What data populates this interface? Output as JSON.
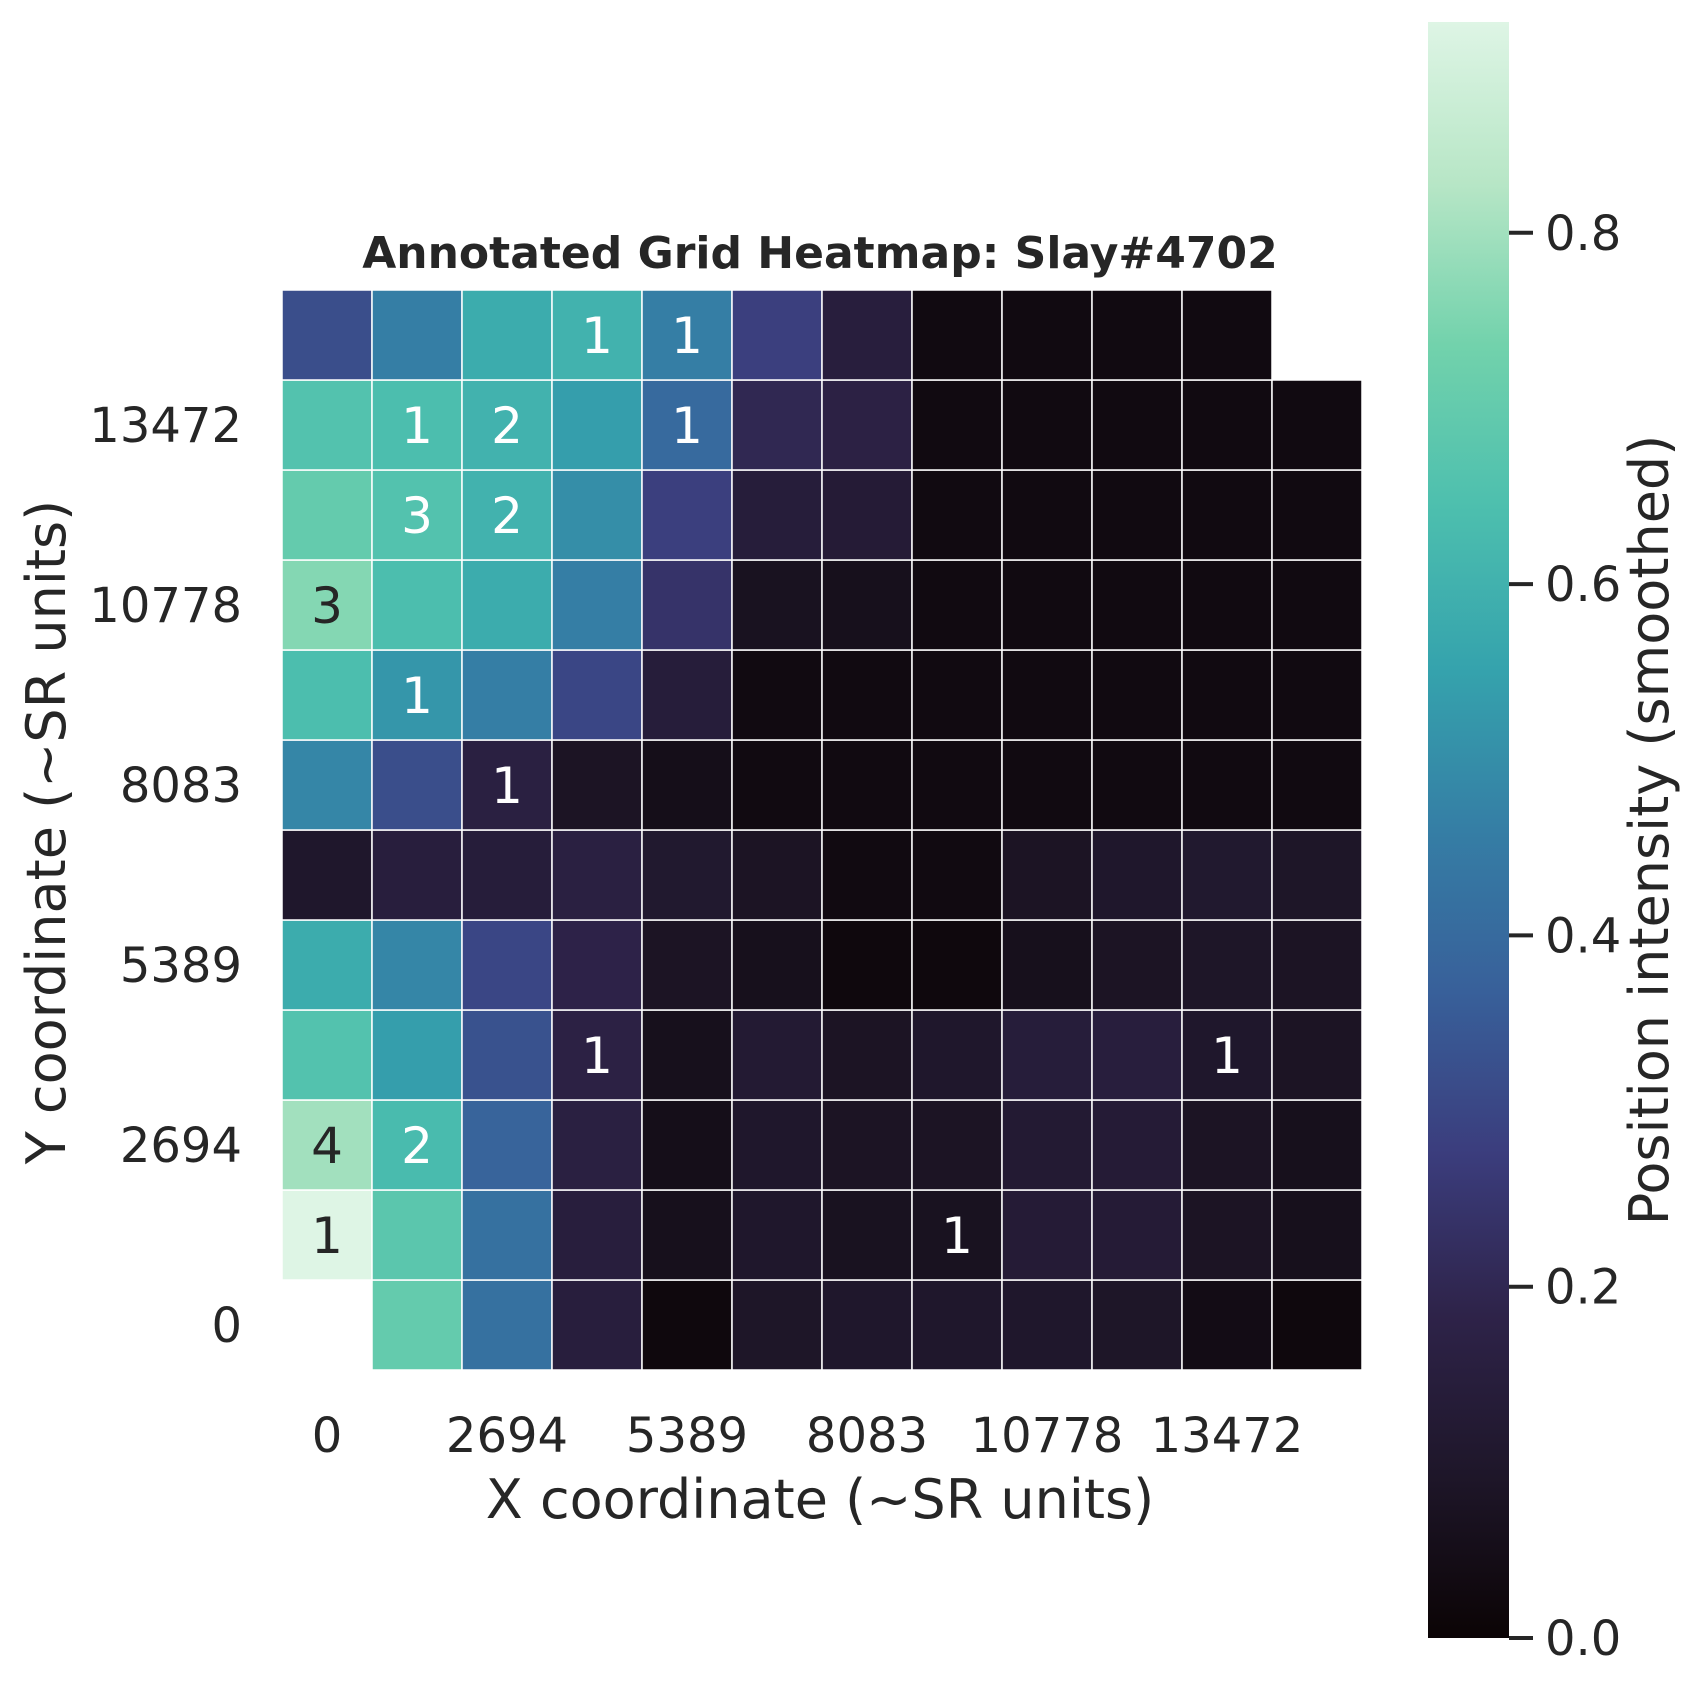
{
  "chart_data": {
    "type": "heatmap",
    "title": "Annotated Grid Heatmap: Slay#4702",
    "xlabel": "X coordinate (~SR units)",
    "ylabel": "Y coordinate (~SR units)",
    "colorbar_label": "Position intensity (smoothed)",
    "colormap": "mako",
    "vmin": 0.0,
    "vmax": 0.92,
    "colorbar_ticks": [
      0.0,
      0.2,
      0.4,
      0.6,
      0.8
    ],
    "colorbar_tick_labels": [
      "0.0",
      "0.2",
      "0.4",
      "0.6",
      "0.8"
    ],
    "x_tick_labels": [
      "0",
      "2694",
      "5389",
      "8083",
      "10778",
      "13472"
    ],
    "x_tick_positions": [
      0,
      2,
      4,
      6,
      8,
      10
    ],
    "y_tick_labels": [
      "0",
      "2694",
      "5389",
      "8083",
      "10778",
      "13472"
    ],
    "y_tick_positions": [
      0,
      2,
      4,
      6,
      8,
      10
    ],
    "n_cols": 12,
    "n_rows": 12,
    "values_row_order": "bottom-to-top",
    "intensity": [
      [
        null,
        0.7,
        0.42,
        0.15,
        0.02,
        0.09,
        0.1,
        0.1,
        0.1,
        0.09,
        0.04,
        0.02
      ],
      [
        0.92,
        0.68,
        0.42,
        0.15,
        0.06,
        0.1,
        0.07,
        0.07,
        0.13,
        0.13,
        0.08,
        0.06
      ],
      [
        0.8,
        0.63,
        0.38,
        0.16,
        0.05,
        0.1,
        0.08,
        0.08,
        0.12,
        0.13,
        0.08,
        0.06
      ],
      [
        0.66,
        0.54,
        0.33,
        0.17,
        0.06,
        0.12,
        0.08,
        0.1,
        0.14,
        0.15,
        0.1,
        0.08
      ],
      [
        0.58,
        0.48,
        0.3,
        0.18,
        0.08,
        0.06,
        0.02,
        0.02,
        0.06,
        0.08,
        0.09,
        0.08
      ],
      [
        0.1,
        0.15,
        0.14,
        0.16,
        0.11,
        0.08,
        0.03,
        0.03,
        0.08,
        0.1,
        0.11,
        0.09
      ],
      [
        0.48,
        0.32,
        0.16,
        0.08,
        0.05,
        0.03,
        0.03,
        0.03,
        0.03,
        0.03,
        0.03,
        0.03
      ],
      [
        0.64,
        0.52,
        0.46,
        0.3,
        0.14,
        0.03,
        0.03,
        0.03,
        0.03,
        0.03,
        0.03,
        0.03
      ],
      [
        0.76,
        0.64,
        0.58,
        0.46,
        0.24,
        0.07,
        0.06,
        0.03,
        0.03,
        0.03,
        0.03,
        0.03
      ],
      [
        0.7,
        0.66,
        0.6,
        0.5,
        0.28,
        0.14,
        0.13,
        0.03,
        0.03,
        0.03,
        0.03,
        0.03
      ],
      [
        0.66,
        0.64,
        0.6,
        0.54,
        0.4,
        0.2,
        0.17,
        0.03,
        0.03,
        0.03,
        0.03,
        0.03
      ],
      [
        0.32,
        0.46,
        0.58,
        0.6,
        0.46,
        0.28,
        0.15,
        0.03,
        0.03,
        0.03,
        0.03,
        null
      ]
    ],
    "counts": [
      [
        null,
        null,
        null,
        null,
        null,
        null,
        null,
        null,
        null,
        null,
        null,
        null
      ],
      [
        1,
        null,
        null,
        null,
        null,
        null,
        null,
        1,
        null,
        null,
        null,
        null
      ],
      [
        4,
        2,
        null,
        null,
        null,
        null,
        null,
        null,
        null,
        null,
        null,
        null
      ],
      [
        null,
        null,
        null,
        1,
        null,
        null,
        null,
        null,
        null,
        null,
        1,
        null
      ],
      [
        null,
        null,
        null,
        null,
        null,
        null,
        null,
        null,
        null,
        null,
        null,
        null
      ],
      [
        null,
        null,
        null,
        null,
        null,
        null,
        null,
        null,
        null,
        null,
        null,
        null
      ],
      [
        null,
        null,
        1,
        null,
        null,
        null,
        null,
        null,
        null,
        null,
        null,
        null
      ],
      [
        null,
        1,
        null,
        null,
        null,
        null,
        null,
        null,
        null,
        null,
        null,
        null
      ],
      [
        3,
        null,
        null,
        null,
        null,
        null,
        null,
        null,
        null,
        null,
        null,
        null
      ],
      [
        null,
        3,
        2,
        null,
        null,
        null,
        null,
        null,
        null,
        null,
        null,
        null
      ],
      [
        null,
        1,
        2,
        null,
        1,
        null,
        null,
        null,
        null,
        null,
        null,
        null
      ],
      [
        null,
        null,
        null,
        1,
        1,
        null,
        null,
        null,
        null,
        null,
        null,
        null
      ]
    ]
  }
}
